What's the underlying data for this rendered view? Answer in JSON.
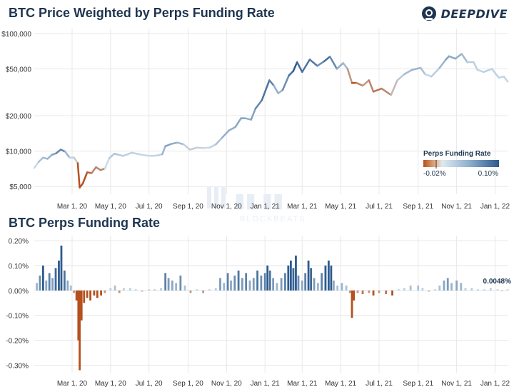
{
  "header": {
    "title_top": "BTC Price Weighted by Perps Funding Rate",
    "title_bottom": "BTC Perps Funding Rate",
    "logo_text": "DEEPDIVE",
    "watermark_text": "BLOCKBEATS"
  },
  "colors": {
    "negative": "#b5501e",
    "neutral": "#c9dbe8",
    "positive": "#2d5a8e",
    "grid": "#e8e8e8",
    "title": "#1e3550"
  },
  "chart_data": [
    {
      "type": "line",
      "title": "BTC Price Weighted by Perps Funding Rate",
      "y_scale": "log",
      "ylim": [
        4300,
        110000
      ],
      "y_ticks": [
        {
          "value": 5000,
          "label": "$5,000"
        },
        {
          "value": 10000,
          "label": "$10,000"
        },
        {
          "value": 20000,
          "label": "$20,000"
        },
        {
          "value": 50000,
          "label": "$50,000"
        },
        {
          "value": 100000,
          "label": "$100,000"
        }
      ],
      "x_ticks": [
        {
          "x": "2020-03-01",
          "label": "Mar 1, 20"
        },
        {
          "x": "2020-05-01",
          "label": "May 1, 20"
        },
        {
          "x": "2020-07-01",
          "label": "Jul 1, 20"
        },
        {
          "x": "2020-09-01",
          "label": "Sep 1, 20"
        },
        {
          "x": "2020-11-01",
          "label": "Nov 1, 20"
        },
        {
          "x": "2021-01-01",
          "label": "Jan 1, 21"
        },
        {
          "x": "2021-03-01",
          "label": "Mar 1, 21"
        },
        {
          "x": "2021-05-01",
          "label": "May 1, 21"
        },
        {
          "x": "2021-07-01",
          "label": "Jul 1, 21"
        },
        {
          "x": "2021-09-01",
          "label": "Sep 1, 21"
        },
        {
          "x": "2021-11-01",
          "label": "Nov 1, 21"
        },
        {
          "x": "2022-01-01",
          "label": "Jan 1, 22"
        }
      ],
      "xlim": [
        "2020-01-01",
        "2022-01-22"
      ],
      "legend": {
        "title": "Perps Funding Rate",
        "min_label": "-0.02%",
        "max_label": "0.10%",
        "placement": "lower-right"
      },
      "points": [
        {
          "x": "2020-01-01",
          "y": 7200,
          "f": -0.005
        },
        {
          "x": "2020-01-08",
          "y": 8100,
          "f": 0.01
        },
        {
          "x": "2020-01-15",
          "y": 8800,
          "f": 0.03
        },
        {
          "x": "2020-01-22",
          "y": 8600,
          "f": 0.02
        },
        {
          "x": "2020-01-29",
          "y": 9300,
          "f": 0.04
        },
        {
          "x": "2020-02-05",
          "y": 9600,
          "f": 0.05
        },
        {
          "x": "2020-02-12",
          "y": 10300,
          "f": 0.08
        },
        {
          "x": "2020-02-19",
          "y": 9900,
          "f": 0.05
        },
        {
          "x": "2020-02-26",
          "y": 8800,
          "f": 0.01
        },
        {
          "x": "2020-03-04",
          "y": 8800,
          "f": 0.005
        },
        {
          "x": "2020-03-10",
          "y": 7900,
          "f": -0.01
        },
        {
          "x": "2020-03-13",
          "y": 4900,
          "f": -0.03
        },
        {
          "x": "2020-03-18",
          "y": 5300,
          "f": -0.03
        },
        {
          "x": "2020-03-25",
          "y": 6600,
          "f": -0.02
        },
        {
          "x": "2020-04-01",
          "y": 6500,
          "f": -0.015
        },
        {
          "x": "2020-04-08",
          "y": 7300,
          "f": -0.01
        },
        {
          "x": "2020-04-15",
          "y": 6900,
          "f": -0.015
        },
        {
          "x": "2020-04-22",
          "y": 7100,
          "f": -0.01
        },
        {
          "x": "2020-04-29",
          "y": 8700,
          "f": 0.01
        },
        {
          "x": "2020-05-07",
          "y": 9500,
          "f": 0.02
        },
        {
          "x": "2020-05-14",
          "y": 9300,
          "f": 0.015
        },
        {
          "x": "2020-05-21",
          "y": 9100,
          "f": 0.01
        },
        {
          "x": "2020-05-28",
          "y": 9400,
          "f": 0.005
        },
        {
          "x": "2020-06-04",
          "y": 9700,
          "f": 0.01
        },
        {
          "x": "2020-06-15",
          "y": 9400,
          "f": 0.005
        },
        {
          "x": "2020-06-25",
          "y": 9200,
          "f": 0.0
        },
        {
          "x": "2020-07-05",
          "y": 9100,
          "f": 0.005
        },
        {
          "x": "2020-07-15",
          "y": 9200,
          "f": 0.005
        },
        {
          "x": "2020-07-22",
          "y": 9400,
          "f": 0.01
        },
        {
          "x": "2020-07-27",
          "y": 11000,
          "f": 0.05
        },
        {
          "x": "2020-08-05",
          "y": 11500,
          "f": 0.04
        },
        {
          "x": "2020-08-15",
          "y": 11800,
          "f": 0.03
        },
        {
          "x": "2020-08-25",
          "y": 11400,
          "f": 0.02
        },
        {
          "x": "2020-09-04",
          "y": 10300,
          "f": -0.005
        },
        {
          "x": "2020-09-15",
          "y": 10700,
          "f": 0.0
        },
        {
          "x": "2020-09-25",
          "y": 10600,
          "f": -0.003
        },
        {
          "x": "2020-10-05",
          "y": 10700,
          "f": 0.002
        },
        {
          "x": "2020-10-15",
          "y": 11400,
          "f": 0.01
        },
        {
          "x": "2020-10-25",
          "y": 13000,
          "f": 0.03
        },
        {
          "x": "2020-11-05",
          "y": 15000,
          "f": 0.04
        },
        {
          "x": "2020-11-15",
          "y": 16000,
          "f": 0.03
        },
        {
          "x": "2020-11-24",
          "y": 19000,
          "f": 0.05
        },
        {
          "x": "2020-12-01",
          "y": 19000,
          "f": 0.04
        },
        {
          "x": "2020-12-10",
          "y": 18500,
          "f": 0.03
        },
        {
          "x": "2020-12-17",
          "y": 23000,
          "f": 0.06
        },
        {
          "x": "2020-12-27",
          "y": 27000,
          "f": 0.07
        },
        {
          "x": "2021-01-08",
          "y": 40000,
          "f": 0.09
        },
        {
          "x": "2021-01-15",
          "y": 36000,
          "f": 0.05
        },
        {
          "x": "2021-01-22",
          "y": 31000,
          "f": 0.02
        },
        {
          "x": "2021-01-29",
          "y": 33000,
          "f": 0.04
        },
        {
          "x": "2021-02-08",
          "y": 44000,
          "f": 0.08
        },
        {
          "x": "2021-02-15",
          "y": 48000,
          "f": 0.09
        },
        {
          "x": "2021-02-21",
          "y": 57000,
          "f": 0.11
        },
        {
          "x": "2021-03-01",
          "y": 47000,
          "f": 0.06
        },
        {
          "x": "2021-03-13",
          "y": 60000,
          "f": 0.1
        },
        {
          "x": "2021-03-25",
          "y": 53000,
          "f": 0.05
        },
        {
          "x": "2021-04-05",
          "y": 58000,
          "f": 0.07
        },
        {
          "x": "2021-04-14",
          "y": 63500,
          "f": 0.1
        },
        {
          "x": "2021-04-25",
          "y": 50000,
          "f": 0.03
        },
        {
          "x": "2021-05-05",
          "y": 56000,
          "f": 0.04
        },
        {
          "x": "2021-05-12",
          "y": 50000,
          "f": 0.01
        },
        {
          "x": "2021-05-19",
          "y": 38000,
          "f": -0.03
        },
        {
          "x": "2021-05-26",
          "y": 38000,
          "f": -0.01
        },
        {
          "x": "2021-06-05",
          "y": 36000,
          "f": -0.015
        },
        {
          "x": "2021-06-15",
          "y": 40000,
          "f": -0.005
        },
        {
          "x": "2021-06-22",
          "y": 32000,
          "f": -0.02
        },
        {
          "x": "2021-07-05",
          "y": 34000,
          "f": -0.01
        },
        {
          "x": "2021-07-20",
          "y": 30000,
          "f": -0.015
        },
        {
          "x": "2021-07-30",
          "y": 40000,
          "f": 0.005
        },
        {
          "x": "2021-08-10",
          "y": 45000,
          "f": 0.02
        },
        {
          "x": "2021-08-22",
          "y": 49000,
          "f": 0.03
        },
        {
          "x": "2021-09-05",
          "y": 51000,
          "f": 0.03
        },
        {
          "x": "2021-09-12",
          "y": 45000,
          "f": 0.01
        },
        {
          "x": "2021-09-22",
          "y": 43000,
          "f": 0.0
        },
        {
          "x": "2021-10-05",
          "y": 51000,
          "f": 0.02
        },
        {
          "x": "2021-10-15",
          "y": 60000,
          "f": 0.04
        },
        {
          "x": "2021-10-20",
          "y": 64000,
          "f": 0.05
        },
        {
          "x": "2021-10-30",
          "y": 61000,
          "f": 0.03
        },
        {
          "x": "2021-11-09",
          "y": 67000,
          "f": 0.04
        },
        {
          "x": "2021-11-18",
          "y": 57000,
          "f": 0.01
        },
        {
          "x": "2021-11-28",
          "y": 57000,
          "f": 0.01
        },
        {
          "x": "2021-12-04",
          "y": 49000,
          "f": 0.005
        },
        {
          "x": "2021-12-14",
          "y": 47000,
          "f": 0.005
        },
        {
          "x": "2021-12-27",
          "y": 50000,
          "f": 0.01
        },
        {
          "x": "2022-01-07",
          "y": 42000,
          "f": 0.004
        },
        {
          "x": "2022-01-15",
          "y": 43000,
          "f": 0.005
        },
        {
          "x": "2022-01-21",
          "y": 39000,
          "f": 0.0048
        }
      ]
    },
    {
      "type": "bar",
      "title": "BTC Perps Funding Rate",
      "ylim": [
        -0.33,
        0.22
      ],
      "y_ticks": [
        {
          "value": 0.2,
          "label": "0.20%"
        },
        {
          "value": 0.1,
          "label": "0.10%"
        },
        {
          "value": 0.0,
          "label": "0.00%"
        },
        {
          "value": -0.1,
          "label": "-0.10%"
        },
        {
          "value": -0.2,
          "label": "-0.20%"
        },
        {
          "value": -0.3,
          "label": "-0.30%"
        }
      ],
      "last_value_label": "0.0048%",
      "bars": [
        {
          "x": "2020-01-05",
          "v": 0.03
        },
        {
          "x": "2020-01-10",
          "v": 0.06
        },
        {
          "x": "2020-01-15",
          "v": 0.1
        },
        {
          "x": "2020-01-20",
          "v": 0.04
        },
        {
          "x": "2020-01-25",
          "v": 0.07
        },
        {
          "x": "2020-01-30",
          "v": 0.05
        },
        {
          "x": "2020-02-04",
          "v": 0.09
        },
        {
          "x": "2020-02-09",
          "v": 0.12
        },
        {
          "x": "2020-02-13",
          "v": 0.18
        },
        {
          "x": "2020-02-18",
          "v": 0.08
        },
        {
          "x": "2020-02-23",
          "v": 0.04
        },
        {
          "x": "2020-02-28",
          "v": 0.02
        },
        {
          "x": "2020-03-04",
          "v": -0.01
        },
        {
          "x": "2020-03-08",
          "v": -0.04
        },
        {
          "x": "2020-03-11",
          "v": -0.2
        },
        {
          "x": "2020-03-13",
          "v": -0.32
        },
        {
          "x": "2020-03-16",
          "v": -0.12
        },
        {
          "x": "2020-03-20",
          "v": -0.05
        },
        {
          "x": "2020-03-25",
          "v": -0.03
        },
        {
          "x": "2020-03-30",
          "v": -0.04
        },
        {
          "x": "2020-04-05",
          "v": -0.02
        },
        {
          "x": "2020-04-10",
          "v": -0.03
        },
        {
          "x": "2020-04-16",
          "v": -0.02
        },
        {
          "x": "2020-04-22",
          "v": -0.01
        },
        {
          "x": "2020-05-01",
          "v": 0.01
        },
        {
          "x": "2020-05-08",
          "v": 0.02
        },
        {
          "x": "2020-05-15",
          "v": -0.01
        },
        {
          "x": "2020-05-22",
          "v": 0.01
        },
        {
          "x": "2020-06-01",
          "v": 0.01
        },
        {
          "x": "2020-06-10",
          "v": 0.005
        },
        {
          "x": "2020-06-20",
          "v": -0.005
        },
        {
          "x": "2020-07-01",
          "v": 0.005
        },
        {
          "x": "2020-07-10",
          "v": 0.005
        },
        {
          "x": "2020-07-20",
          "v": 0.01
        },
        {
          "x": "2020-07-27",
          "v": 0.07
        },
        {
          "x": "2020-08-01",
          "v": 0.05
        },
        {
          "x": "2020-08-07",
          "v": 0.04
        },
        {
          "x": "2020-08-13",
          "v": 0.03
        },
        {
          "x": "2020-08-20",
          "v": 0.06
        },
        {
          "x": "2020-08-27",
          "v": 0.02
        },
        {
          "x": "2020-09-05",
          "v": -0.01
        },
        {
          "x": "2020-09-15",
          "v": 0.005
        },
        {
          "x": "2020-09-25",
          "v": -0.01
        },
        {
          "x": "2020-10-05",
          "v": 0.005
        },
        {
          "x": "2020-10-15",
          "v": 0.01
        },
        {
          "x": "2020-10-22",
          "v": 0.05
        },
        {
          "x": "2020-10-28",
          "v": 0.03
        },
        {
          "x": "2020-11-03",
          "v": 0.07
        },
        {
          "x": "2020-11-08",
          "v": 0.04
        },
        {
          "x": "2020-11-14",
          "v": 0.06
        },
        {
          "x": "2020-11-20",
          "v": 0.08
        },
        {
          "x": "2020-11-26",
          "v": 0.05
        },
        {
          "x": "2020-12-02",
          "v": 0.07
        },
        {
          "x": "2020-12-08",
          "v": 0.04
        },
        {
          "x": "2020-12-14",
          "v": 0.05
        },
        {
          "x": "2020-12-20",
          "v": 0.08
        },
        {
          "x": "2020-12-26",
          "v": 0.06
        },
        {
          "x": "2021-01-01",
          "v": 0.07
        },
        {
          "x": "2021-01-05",
          "v": 0.1
        },
        {
          "x": "2021-01-09",
          "v": 0.08
        },
        {
          "x": "2021-01-14",
          "v": 0.05
        },
        {
          "x": "2021-01-20",
          "v": 0.03
        },
        {
          "x": "2021-01-27",
          "v": 0.05
        },
        {
          "x": "2021-02-02",
          "v": 0.07
        },
        {
          "x": "2021-02-07",
          "v": 0.1
        },
        {
          "x": "2021-02-11",
          "v": 0.12
        },
        {
          "x": "2021-02-15",
          "v": 0.09
        },
        {
          "x": "2021-02-19",
          "v": 0.14
        },
        {
          "x": "2021-02-23",
          "v": 0.06
        },
        {
          "x": "2021-03-01",
          "v": 0.04
        },
        {
          "x": "2021-03-06",
          "v": 0.07
        },
        {
          "x": "2021-03-11",
          "v": 0.12
        },
        {
          "x": "2021-03-15",
          "v": 0.09
        },
        {
          "x": "2021-03-20",
          "v": 0.05
        },
        {
          "x": "2021-03-26",
          "v": 0.03
        },
        {
          "x": "2021-04-01",
          "v": 0.07
        },
        {
          "x": "2021-04-07",
          "v": 0.1
        },
        {
          "x": "2021-04-12",
          "v": 0.12
        },
        {
          "x": "2021-04-16",
          "v": 0.1
        },
        {
          "x": "2021-04-20",
          "v": 0.04
        },
        {
          "x": "2021-04-26",
          "v": 0.02
        },
        {
          "x": "2021-05-03",
          "v": 0.03
        },
        {
          "x": "2021-05-10",
          "v": 0.02
        },
        {
          "x": "2021-05-16",
          "v": -0.01
        },
        {
          "x": "2021-05-19",
          "v": -0.11
        },
        {
          "x": "2021-05-22",
          "v": -0.04
        },
        {
          "x": "2021-05-28",
          "v": -0.01
        },
        {
          "x": "2021-06-05",
          "v": -0.015
        },
        {
          "x": "2021-06-15",
          "v": -0.01
        },
        {
          "x": "2021-06-22",
          "v": -0.02
        },
        {
          "x": "2021-07-01",
          "v": -0.01
        },
        {
          "x": "2021-07-12",
          "v": -0.015
        },
        {
          "x": "2021-07-22",
          "v": -0.02
        },
        {
          "x": "2021-08-01",
          "v": 0.005
        },
        {
          "x": "2021-08-10",
          "v": 0.01
        },
        {
          "x": "2021-08-20",
          "v": 0.02
        },
        {
          "x": "2021-09-01",
          "v": 0.02
        },
        {
          "x": "2021-09-08",
          "v": 0.01
        },
        {
          "x": "2021-09-18",
          "v": -0.005
        },
        {
          "x": "2021-09-28",
          "v": 0.005
        },
        {
          "x": "2021-10-05",
          "v": 0.02
        },
        {
          "x": "2021-10-12",
          "v": 0.04
        },
        {
          "x": "2021-10-18",
          "v": 0.05
        },
        {
          "x": "2021-10-24",
          "v": 0.03
        },
        {
          "x": "2021-11-01",
          "v": 0.04
        },
        {
          "x": "2021-11-08",
          "v": 0.03
        },
        {
          "x": "2021-11-15",
          "v": 0.01
        },
        {
          "x": "2021-11-25",
          "v": 0.01
        },
        {
          "x": "2021-12-05",
          "v": 0.005
        },
        {
          "x": "2021-12-15",
          "v": 0.005
        },
        {
          "x": "2021-12-25",
          "v": 0.01
        },
        {
          "x": "2022-01-05",
          "v": 0.005
        },
        {
          "x": "2022-01-12",
          "v": -0.003
        },
        {
          "x": "2022-01-21",
          "v": 0.0048
        }
      ]
    }
  ]
}
